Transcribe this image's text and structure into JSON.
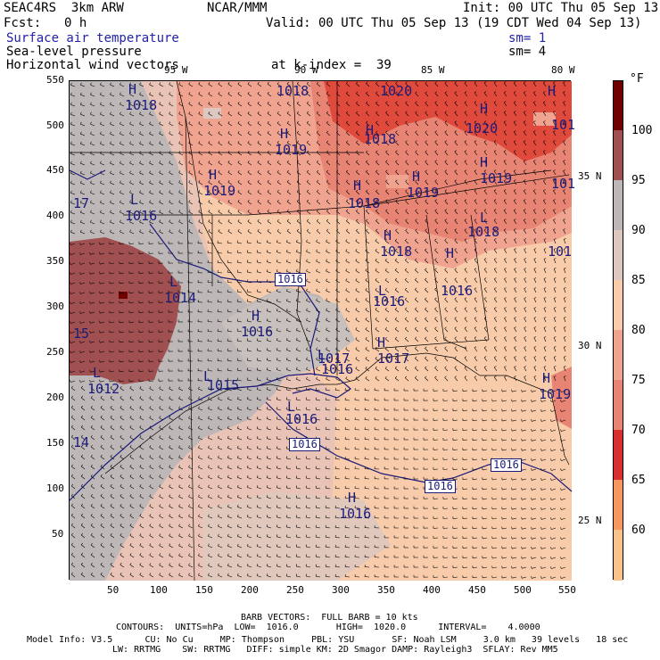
{
  "header": {
    "run_name": "SEAC4RS  3km ARW",
    "center": "NCAR/MMM",
    "init": "Init: 00 UTC Thu 05 Sep 13",
    "fcst_label": "Fcst:",
    "fcst_value": "0 h",
    "valid": "Valid: 00 UTC Thu 05 Sep 13 (19 CDT Wed 04 Sep 13)",
    "field1": "Surface air temperature",
    "field2": "Sea-level pressure",
    "field3": "Horizontal wind vectors",
    "sm1": "sm= 1",
    "sm2": "sm= 4",
    "level": "at k-index =  39"
  },
  "axes": {
    "x_ticks": [
      "50",
      "100",
      "150",
      "200",
      "250",
      "300",
      "350",
      "400",
      "450",
      "500",
      "550"
    ],
    "y_ticks": [
      "550",
      "500",
      "450",
      "400",
      "350",
      "300",
      "250",
      "200",
      "150",
      "100",
      "50"
    ],
    "lon_labels": [
      "95 W",
      "90 W",
      "85 W",
      "80 W"
    ],
    "lat_labels": [
      "35 N",
      "30 N",
      "25 N"
    ]
  },
  "colorbar": {
    "unit": "°F",
    "levels": [
      "100",
      "95",
      "90",
      "85",
      "80",
      "75",
      "70",
      "65",
      "60"
    ],
    "colors": [
      "#6e0000",
      "#a05050",
      "#bdb7b7",
      "#dcc8c0",
      "#f8ccaa",
      "#f0a490",
      "#e88474",
      "#d83030",
      "#f49860",
      "#f8c28a",
      "#fbdcae"
    ]
  },
  "map": {
    "pressure_labels": [
      {
        "sym": "H",
        "val": "1018"
      },
      {
        "sym": "H",
        "val": "1018"
      },
      {
        "sym": "H",
        "val": "1020"
      },
      {
        "sym": "H",
        "val": "1018"
      },
      {
        "sym": "H",
        "val": "1020"
      },
      {
        "sym": "H",
        "val": "1019"
      },
      {
        "sym": "H",
        "val": "1019"
      },
      {
        "sym": "H",
        "val": "1018"
      },
      {
        "sym": "H",
        "val": "1019"
      },
      {
        "sym": "H",
        "val": "1019"
      },
      {
        "sym": "H",
        "val": "1018"
      },
      {
        "sym": "L",
        "val": "1016"
      },
      {
        "sym": "L",
        "val": "1018"
      },
      {
        "sym": "L",
        "val": "1016"
      },
      {
        "sym": "L",
        "val": "1014"
      },
      {
        "sym": "H",
        "val": "1016"
      },
      {
        "sym": "L",
        "val": "1016"
      },
      {
        "sym": "L",
        "val": "1012"
      },
      {
        "sym": "L",
        "val": "1015"
      },
      {
        "sym": "L",
        "val": "1016"
      },
      {
        "sym": "H",
        "val": "1016"
      },
      {
        "sym": "H",
        "val": "1017"
      },
      {
        "sym": "H",
        "val": "1019"
      },
      {
        "sym": "H",
        "val": "1018"
      },
      {
        "sym": "H",
        "val": "1016"
      },
      {
        "sym": "H",
        "val": "1017"
      },
      {
        "sym": "L",
        "val": "1016"
      }
    ],
    "contour_boxes": [
      "1016",
      "1016",
      "1016",
      "1016"
    ],
    "edge_labels": [
      "17",
      "15",
      "14",
      "101",
      "101",
      "101"
    ]
  },
  "footer": {
    "barb": "BARB VECTORS:  FULL BARB = 10 kts",
    "contours": "CONTOURS:  UNITS=hPa  LOW=  1016.0       HIGH=  1020.0      INTERVAL=    4.0000",
    "model1": "Model Info: V3.5      CU: No Cu     MP: Thompson     PBL: YSU       SF: Noah LSM     3.0 km   39 levels   18 sec",
    "model2": "LW: RRTMG    SW: RRTMG   DIFF: simple KM: 2D Smagor DAMP: Rayleigh3  SFLAY: Rev MM5"
  }
}
